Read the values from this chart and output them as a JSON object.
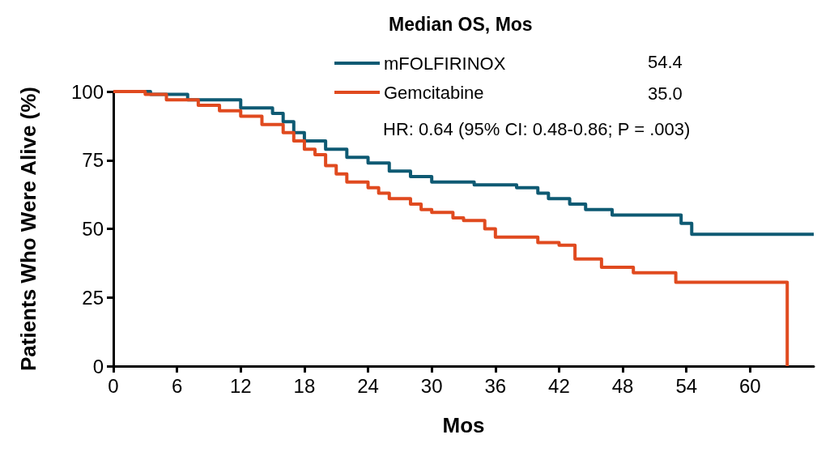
{
  "chart_data": {
    "type": "step",
    "xlabel": "Mos",
    "ylabel": "Patients Who Were Alive (%)",
    "legend_title": "Median OS, Mos",
    "xlim": [
      0,
      66
    ],
    "xticks": [
      0,
      6,
      12,
      18,
      24,
      30,
      36,
      42,
      48,
      54,
      60
    ],
    "ylim": [
      0,
      100
    ],
    "yticks": [
      0,
      25,
      50,
      75,
      100
    ],
    "legend": "top",
    "grid": false,
    "marker": "none",
    "line_style": "solid",
    "annotations": [
      "54.4",
      "35.0",
      "HR: 0.64 (95% CI: 0.48-0.86; P = .003)"
    ],
    "series": [
      {
        "name": "mFOLFIRINOX",
        "color": "#0e5a73",
        "x": [
          0,
          3.5,
          7,
          12,
          15,
          16,
          17,
          18,
          20,
          22,
          24,
          26,
          28,
          30,
          34,
          38,
          40,
          41,
          43,
          44.5,
          47,
          53.5,
          54.5,
          66
        ],
        "values": [
          100,
          99,
          97,
          94,
          92,
          89,
          85,
          82,
          79,
          76,
          74,
          71,
          69,
          67,
          66,
          65,
          63,
          61,
          59,
          57,
          55,
          52,
          48,
          48
        ]
      },
      {
        "name": "Gemcitabine",
        "color": "#e04a1f",
        "x": [
          0,
          3,
          5,
          8,
          10,
          12,
          14,
          16,
          17,
          18,
          19,
          20,
          21,
          22,
          24,
          25,
          26,
          28,
          29,
          30,
          32,
          33,
          35,
          36,
          40,
          42,
          43.5,
          46,
          49,
          53,
          63.5,
          63.5
        ],
        "values": [
          100,
          99,
          97,
          95,
          93,
          91,
          88,
          85,
          82,
          79,
          77,
          73,
          70,
          67,
          65,
          63,
          61,
          59,
          57,
          56,
          54,
          53,
          50,
          47,
          45,
          44,
          39,
          36,
          34,
          30.5,
          30.5,
          0
        ]
      }
    ]
  }
}
